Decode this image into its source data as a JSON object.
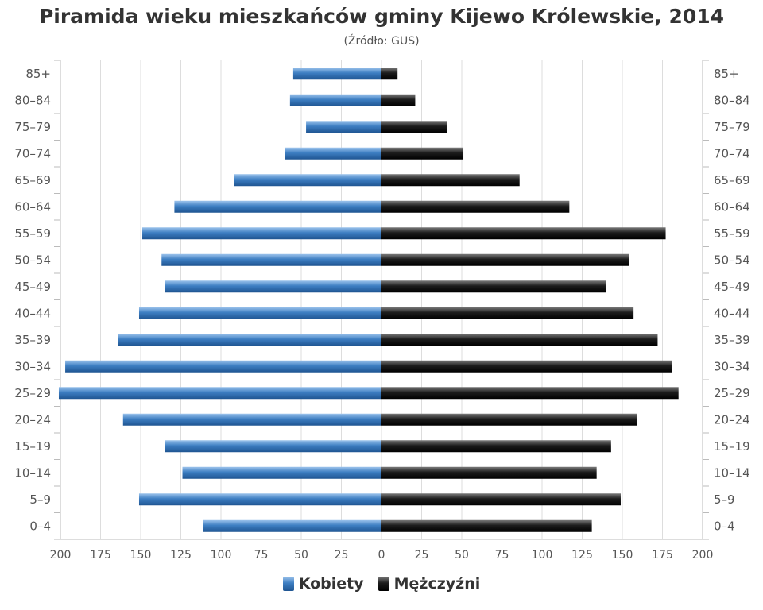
{
  "chart_data": {
    "type": "bar",
    "orientation": "horizontal",
    "title": "Piramida wieku mieszkańców gminy Kijewo Królewskie, 2014",
    "subtitle": "(Źródło: GUS)",
    "categories": [
      "85+",
      "80–84",
      "75–79",
      "70–74",
      "65–69",
      "60–64",
      "55–59",
      "50–54",
      "45–49",
      "40–44",
      "35–39",
      "30–34",
      "25–29",
      "20–24",
      "15–19",
      "10–14",
      "5–9",
      "0–4"
    ],
    "series": [
      {
        "name": "Kobiety",
        "color": "#3d7ec2",
        "values": [
          55,
          57,
          47,
          60,
          92,
          129,
          149,
          137,
          135,
          151,
          164,
          197,
          201,
          161,
          135,
          124,
          151,
          111
        ]
      },
      {
        "name": "Mężczyźni",
        "color": "#1c1c1c",
        "values": [
          10,
          21,
          41,
          51,
          86,
          117,
          177,
          154,
          140,
          157,
          172,
          181,
          185,
          159,
          143,
          134,
          149,
          131
        ]
      }
    ],
    "x_ticks": [
      "200",
      "175",
      "150",
      "125",
      "100",
      "75",
      "50",
      "25",
      "0",
      "25",
      "50",
      "75",
      "100",
      "125",
      "150",
      "175",
      "200"
    ],
    "xlim": [
      -200,
      200
    ],
    "grid": true,
    "legend_position": "bottom"
  }
}
